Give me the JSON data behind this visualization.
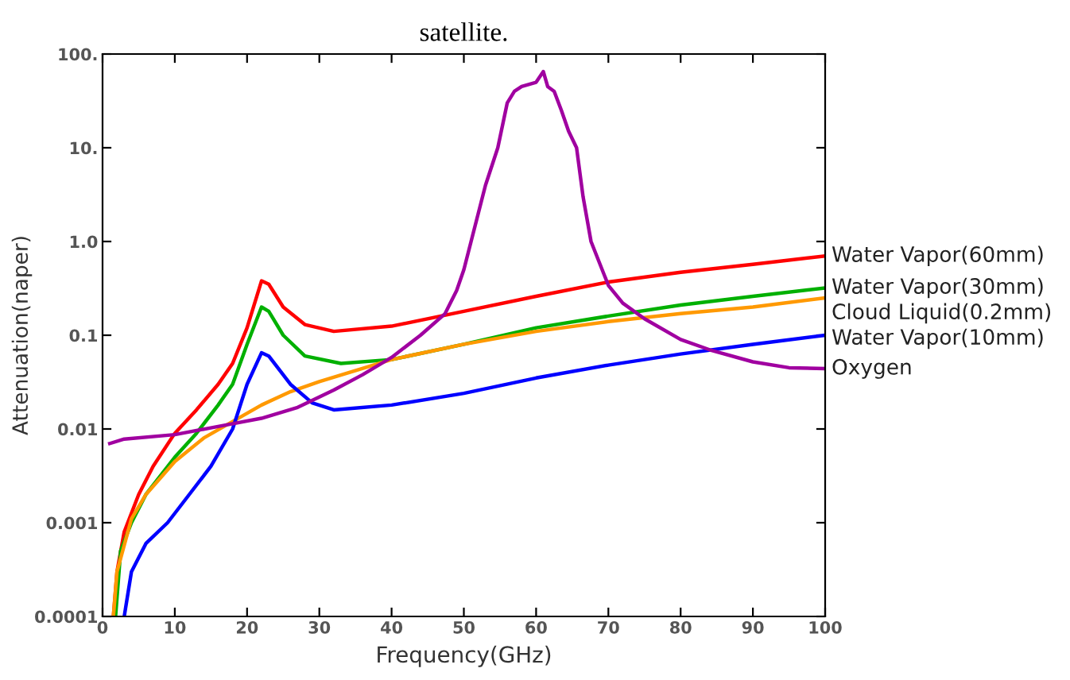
{
  "chart_data": {
    "type": "line",
    "title": "satellite.",
    "xlabel": "Frequency(GHz)",
    "ylabel": "Attenuation(naper)",
    "log": "y",
    "grid": false,
    "legend": false,
    "xlim": [
      0,
      100
    ],
    "xticks": [
      0,
      10,
      20,
      30,
      40,
      50,
      60,
      70,
      80,
      90,
      100
    ],
    "ylim": [
      0.0001,
      100
    ],
    "yticks": [
      {
        "value": 0.0001,
        "label": "0.0001"
      },
      {
        "value": 0.001,
        "label": "0.001"
      },
      {
        "value": 0.01,
        "label": "0.01"
      },
      {
        "value": 0.1,
        "label": "0.1"
      },
      {
        "value": 1,
        "label": "1.0"
      },
      {
        "value": 10,
        "label": "10."
      },
      {
        "value": 100,
        "label": "100."
      }
    ],
    "series": [
      {
        "name": "Water Vapor(60mm)",
        "color": "#ff0000",
        "x": [
          1.5,
          2,
          3,
          5,
          7,
          10,
          13,
          16,
          18,
          20,
          22,
          23,
          25,
          28,
          32,
          40,
          50,
          60,
          70,
          80,
          90,
          100
        ],
        "values": [
          0.0001,
          0.0003,
          0.0008,
          0.002,
          0.004,
          0.009,
          0.016,
          0.03,
          0.05,
          0.12,
          0.38,
          0.35,
          0.2,
          0.13,
          0.11,
          0.125,
          0.18,
          0.26,
          0.37,
          0.47,
          0.57,
          0.7
        ]
      },
      {
        "name": "Water Vapor(30mm)",
        "color": "#00b000",
        "x": [
          1.8,
          2.5,
          4,
          6,
          10,
          13,
          16,
          18,
          20,
          22,
          23,
          25,
          28,
          33,
          40,
          50,
          60,
          70,
          80,
          90,
          100
        ],
        "values": [
          0.0001,
          0.0005,
          0.001,
          0.002,
          0.005,
          0.009,
          0.018,
          0.03,
          0.08,
          0.2,
          0.18,
          0.1,
          0.06,
          0.05,
          0.055,
          0.08,
          0.12,
          0.16,
          0.21,
          0.26,
          0.32
        ]
      },
      {
        "name": "Cloud Liquid(0.2mm)",
        "color": "#ff9900",
        "x": [
          1.5,
          2,
          4,
          6,
          10,
          14,
          18,
          22,
          26,
          30,
          40,
          50,
          60,
          70,
          80,
          90,
          100
        ],
        "values": [
          0.0001,
          0.0003,
          0.0011,
          0.002,
          0.0045,
          0.008,
          0.012,
          0.018,
          0.025,
          0.032,
          0.055,
          0.08,
          0.11,
          0.14,
          0.17,
          0.2,
          0.25
        ]
      },
      {
        "name": "Water Vapor(10mm)",
        "color": "#0000ff",
        "x": [
          3,
          4,
          6,
          9,
          12,
          15,
          18,
          20,
          22,
          23,
          26,
          29,
          32,
          40,
          50,
          60,
          70,
          80,
          90,
          100
        ],
        "values": [
          0.0001,
          0.0003,
          0.0006,
          0.001,
          0.002,
          0.004,
          0.01,
          0.03,
          0.065,
          0.06,
          0.03,
          0.019,
          0.016,
          0.018,
          0.024,
          0.035,
          0.048,
          0.063,
          0.08,
          0.1
        ]
      },
      {
        "name": "Oxygen",
        "color": "#a000a0",
        "x": [
          1,
          3,
          10,
          17,
          22,
          27,
          32,
          36,
          40,
          44,
          47.4,
          49,
          50,
          51,
          52,
          53,
          54.7,
          56,
          57,
          58,
          60,
          61,
          61.6,
          62.5,
          63.5,
          64.5,
          65.6,
          66.5,
          67.6,
          70,
          72,
          75,
          80,
          84,
          90,
          95,
          100
        ],
        "values": [
          0.007,
          0.0078,
          0.0087,
          0.011,
          0.013,
          0.017,
          0.026,
          0.038,
          0.058,
          0.1,
          0.17,
          0.3,
          0.5,
          1,
          2,
          4,
          10,
          30,
          40,
          45,
          50,
          65,
          45,
          40,
          25,
          15,
          10,
          3,
          1,
          0.34,
          0.22,
          0.15,
          0.09,
          0.07,
          0.052,
          0.045,
          0.044
        ]
      }
    ]
  }
}
